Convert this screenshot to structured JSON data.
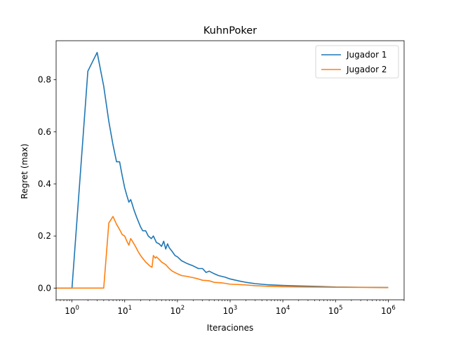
{
  "chart_data": {
    "type": "line",
    "title": "KuhnPoker",
    "xlabel": "Iteraciones",
    "ylabel": "Regret (max)",
    "xscale": "log",
    "xlim": [
      0.5,
      2000000
    ],
    "ylim": [
      -0.045,
      0.95
    ],
    "x_ticks": [
      {
        "base": "10",
        "exp": "0",
        "value": 1
      },
      {
        "base": "10",
        "exp": "1",
        "value": 10
      },
      {
        "base": "10",
        "exp": "2",
        "value": 100
      },
      {
        "base": "10",
        "exp": "3",
        "value": 1000
      },
      {
        "base": "10",
        "exp": "4",
        "value": 10000
      },
      {
        "base": "10",
        "exp": "5",
        "value": 100000
      },
      {
        "base": "10",
        "exp": "6",
        "value": 1000000
      }
    ],
    "y_ticks": [
      {
        "label": "0.0",
        "value": 0.0
      },
      {
        "label": "0.2",
        "value": 0.2
      },
      {
        "label": "0.4",
        "value": 0.4
      },
      {
        "label": "0.6",
        "value": 0.6
      },
      {
        "label": "0.8",
        "value": 0.8
      }
    ],
    "grid": false,
    "legend_position": "top-right",
    "series": [
      {
        "name": "Jugador 1",
        "color": "#1f77b4",
        "x": [
          0.5,
          1,
          2,
          3,
          4,
          5,
          6,
          7,
          8,
          9,
          10,
          11,
          12,
          13,
          14,
          15,
          17,
          20,
          22,
          25,
          28,
          32,
          35,
          40,
          45,
          50,
          55,
          60,
          65,
          70,
          80,
          90,
          100,
          120,
          150,
          200,
          250,
          300,
          350,
          400,
          500,
          600,
          800,
          1000,
          1500,
          2000,
          3000,
          5000,
          10000,
          20000,
          50000,
          100000,
          1000000
        ],
        "y": [
          0.0,
          0.0,
          0.833,
          0.905,
          0.775,
          0.64,
          0.55,
          0.485,
          0.485,
          0.43,
          0.385,
          0.355,
          0.33,
          0.34,
          0.32,
          0.3,
          0.27,
          0.235,
          0.22,
          0.22,
          0.2,
          0.19,
          0.2,
          0.175,
          0.17,
          0.16,
          0.18,
          0.15,
          0.17,
          0.155,
          0.14,
          0.125,
          0.12,
          0.105,
          0.095,
          0.085,
          0.075,
          0.075,
          0.06,
          0.065,
          0.055,
          0.048,
          0.042,
          0.035,
          0.027,
          0.022,
          0.017,
          0.013,
          0.01,
          0.008,
          0.006,
          0.004,
          0.002
        ]
      },
      {
        "name": "Jugador 2",
        "color": "#ff7f0e",
        "x": [
          0.5,
          1,
          2,
          3,
          4,
          5,
          6,
          7,
          8,
          9,
          10,
          11,
          12,
          13,
          14,
          16,
          18,
          20,
          25,
          30,
          33,
          35,
          38,
          40,
          45,
          50,
          60,
          70,
          80,
          100,
          120,
          150,
          200,
          250,
          300,
          400,
          500,
          700,
          1000,
          2000,
          3000,
          5000,
          10000,
          30000,
          100000,
          1000000
        ],
        "y": [
          0.0,
          0.0,
          0.0,
          0.0,
          0.0,
          0.25,
          0.275,
          0.245,
          0.225,
          0.205,
          0.2,
          0.18,
          0.165,
          0.19,
          0.18,
          0.16,
          0.14,
          0.125,
          0.1,
          0.085,
          0.08,
          0.125,
          0.115,
          0.12,
          0.11,
          0.1,
          0.09,
          0.075,
          0.065,
          0.055,
          0.048,
          0.045,
          0.04,
          0.035,
          0.03,
          0.028,
          0.022,
          0.02,
          0.015,
          0.012,
          0.009,
          0.007,
          0.005,
          0.004,
          0.003,
          0.002
        ]
      }
    ]
  }
}
